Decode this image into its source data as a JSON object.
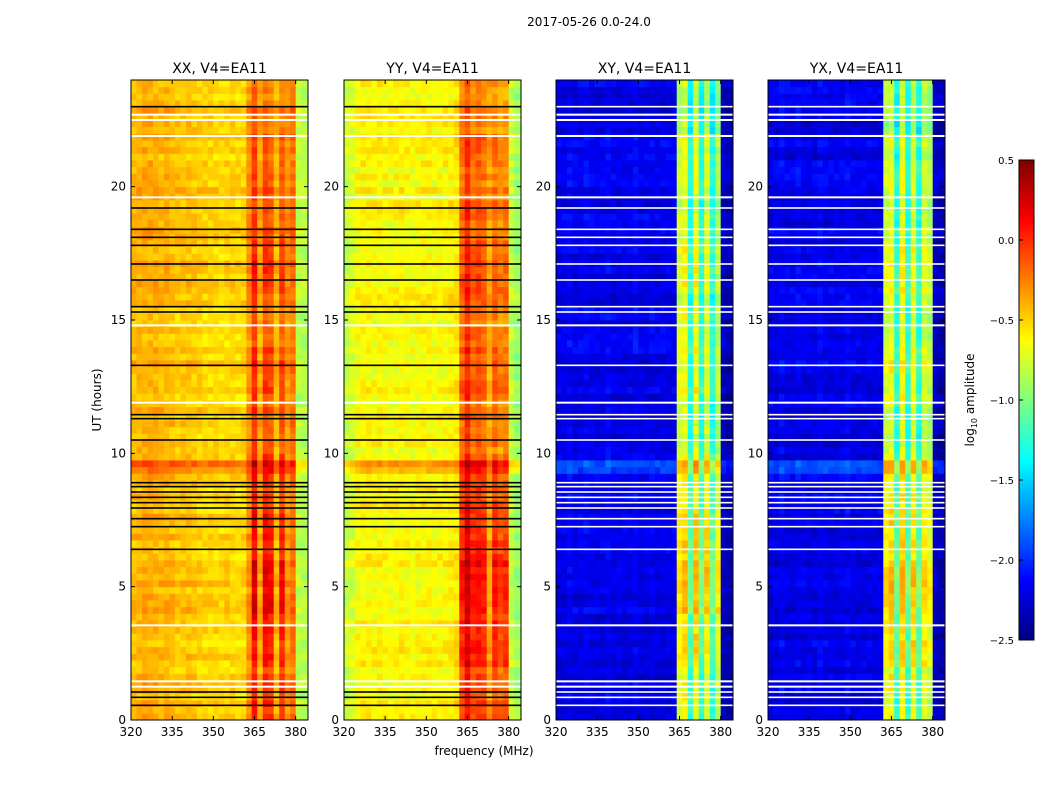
{
  "chart_data": {
    "type": "heatmap",
    "title": "2017-05-26 0.0-24.0",
    "xlabel": "frequency (MHz)",
    "ylabel": "UT (hours)",
    "xlim": [
      320,
      384.5
    ],
    "ylim": [
      0,
      24
    ],
    "xticks": [
      320,
      335,
      350,
      365,
      380
    ],
    "xtick_labels": [
      "320",
      "335",
      "350",
      "365",
      "380"
    ],
    "yticks": [
      0,
      5,
      10,
      15,
      20
    ],
    "ytick_labels": [
      "0",
      "5",
      "10",
      "15",
      "20"
    ],
    "freq_bin_mhz": 2,
    "time_bin_hours": 0.25,
    "band_time_gain_2h_bins": [
      0.05,
      0.1,
      0.15,
      0.1,
      0.05,
      0.0,
      0.05,
      0.0,
      0.05,
      0.0,
      0.0,
      -0.05
    ],
    "panels": [
      {
        "title": "XX, V4=EA11",
        "freq_profile": [
          -0.42,
          -0.4,
          -0.38,
          -0.38,
          -0.4,
          -0.42,
          -0.4,
          -0.42,
          -0.45,
          -0.45,
          -0.44,
          -0.46,
          -0.48,
          -0.5,
          -0.5,
          -0.5,
          -0.52,
          -0.5,
          -0.5,
          -0.52,
          -0.5,
          -0.3,
          -0.05,
          -0.35,
          -0.1,
          -0.15,
          -0.4,
          -0.15,
          -0.3,
          -0.2,
          -0.8,
          -0.85
        ]
      },
      {
        "title": "YY, V4=EA11",
        "freq_profile": [
          -0.78,
          -0.72,
          -0.62,
          -0.6,
          -0.6,
          -0.62,
          -0.6,
          -0.62,
          -0.64,
          -0.62,
          -0.6,
          -0.62,
          -0.64,
          -0.62,
          -0.6,
          -0.6,
          -0.62,
          -0.62,
          -0.6,
          -0.58,
          -0.55,
          -0.2,
          0.0,
          -0.2,
          -0.15,
          -0.2,
          -0.35,
          -0.2,
          -0.3,
          -0.25,
          -0.8,
          -0.9
        ]
      },
      {
        "title": "XY, V4=EA11",
        "freq_profile": [
          -2.2,
          -2.2,
          -2.15,
          -2.2,
          -2.2,
          -2.15,
          -2.2,
          -2.2,
          -2.2,
          -2.15,
          -2.2,
          -2.2,
          -2.2,
          -2.2,
          -2.15,
          -2.2,
          -2.2,
          -2.2,
          -2.2,
          -2.2,
          -2.2,
          -2.2,
          -0.8,
          -0.7,
          -1.3,
          -0.7,
          -1.3,
          -0.75,
          -1.3,
          -0.9,
          -2.3,
          -2.35
        ]
      },
      {
        "title": "YX, V4=EA11",
        "freq_profile": [
          -2.2,
          -2.2,
          -2.15,
          -2.2,
          -2.2,
          -2.15,
          -2.2,
          -2.2,
          -2.2,
          -2.15,
          -2.2,
          -2.2,
          -2.2,
          -2.2,
          -2.15,
          -2.2,
          -2.2,
          -2.2,
          -2.2,
          -2.2,
          -2.2,
          -0.8,
          -0.7,
          -1.3,
          -0.7,
          -1.3,
          -0.75,
          -1.3,
          -0.8,
          -0.9,
          -2.3,
          -2.35
        ]
      }
    ],
    "flagged_black_hours": [
      23.0,
      19.2,
      18.4,
      18.1,
      17.8,
      17.1,
      16.5,
      15.5,
      15.3,
      13.3,
      11.45,
      11.3,
      10.5,
      8.9,
      8.75,
      8.55,
      8.35,
      8.15,
      7.95,
      7.55,
      7.25,
      6.4,
      1.05,
      0.85,
      0.55
    ],
    "flagged_white_hours": [
      22.7,
      22.5,
      21.9,
      19.6,
      14.8,
      11.9,
      3.55,
      1.45,
      1.25
    ],
    "enhanced_row": {
      "hours": [
        9.25,
        9.6
      ],
      "delta": 0.25
    },
    "colorbar": {
      "label": "log10 amplitude",
      "label_main": "log",
      "label_sub": "10",
      "label_rest": " amplitude",
      "range": [
        -2.5,
        0.5
      ],
      "ticks": [
        -2.5,
        -2.0,
        -1.5,
        -1.0,
        -0.5,
        0.0,
        0.5
      ],
      "tick_labels": [
        "−2.5",
        "−2.0",
        "−1.5",
        "−1.0",
        "−0.5",
        "0.0",
        "0.5"
      ]
    }
  }
}
